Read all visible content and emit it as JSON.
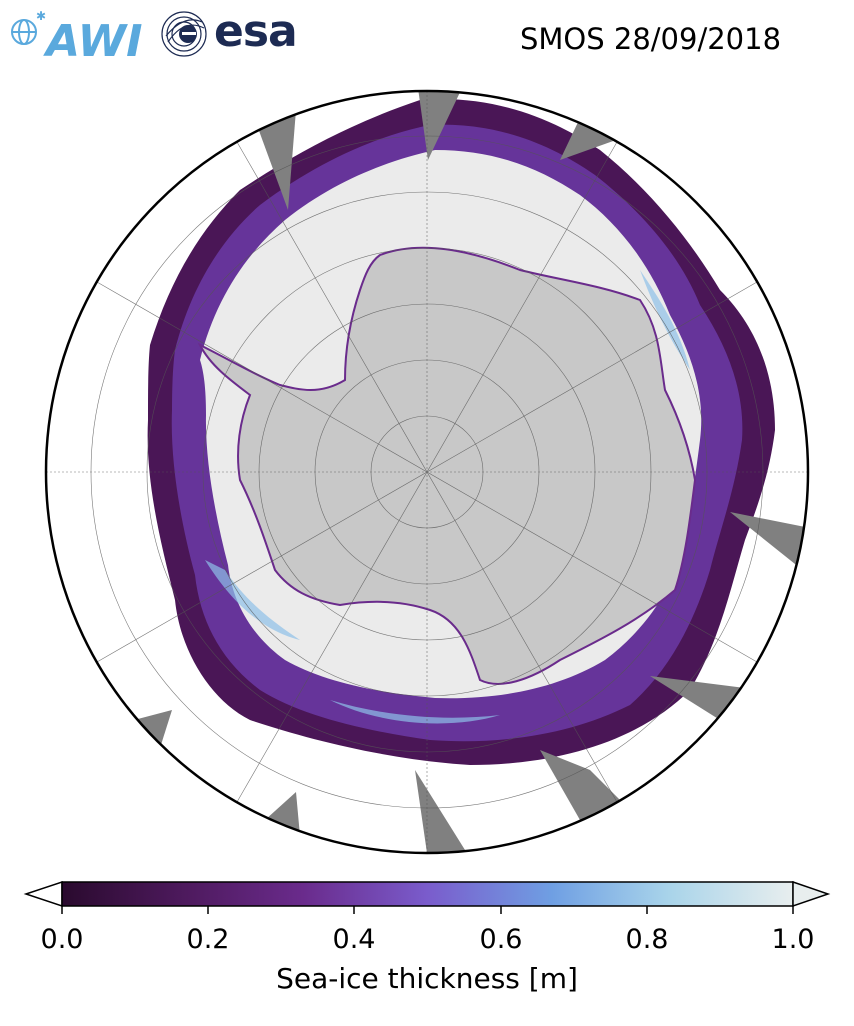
{
  "header": {
    "title": "SMOS 28/09/2018",
    "logos": [
      {
        "name": "awi-logo",
        "text": "AWI",
        "color": "#5aa9dd"
      },
      {
        "name": "esa-logo",
        "text": "esa",
        "color": "#1d2b53"
      }
    ]
  },
  "map": {
    "projection": "south-polar-stereographic",
    "land_color": "#c8c8c8",
    "ocean_color": "#ffffff",
    "nodata_color": "#808080",
    "grid_color": "#555555"
  },
  "colorbar": {
    "label": "Sea-ice thickness [m]",
    "range": [
      0.0,
      1.0
    ],
    "extend": "both",
    "ticks": [
      "0.0",
      "0.2",
      "0.4",
      "0.6",
      "0.8",
      "1.0"
    ],
    "colors": [
      "#2a0a2e",
      "#4e1a5e",
      "#6a2b8c",
      "#7a5ccc",
      "#6f9fe3",
      "#a9d4ea",
      "#e8eeee"
    ]
  }
}
